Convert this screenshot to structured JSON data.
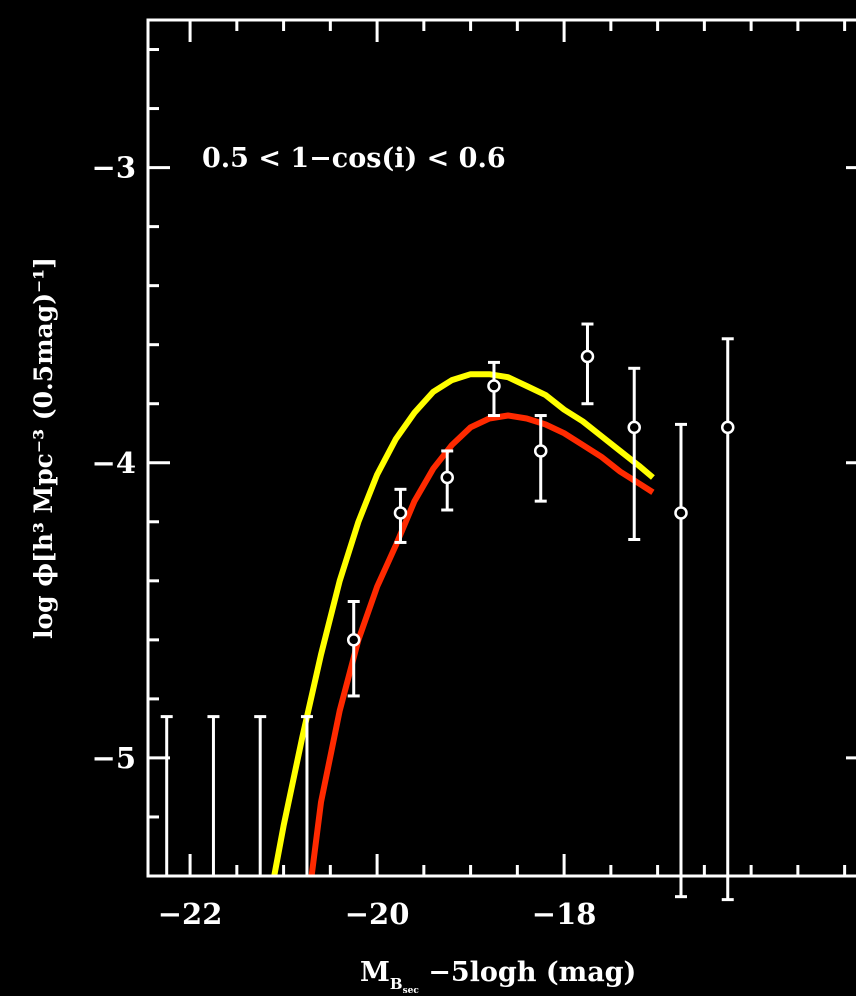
{
  "chart_data": {
    "type": "line",
    "xlabel": "M",
    "xlabel_subscript": "B",
    "xlabel_subsubscript": "sec",
    "xlabel_rest": " −5logh (mag)",
    "ylabel": "log ϕ[h³ Mpc⁻³ (0.5mag)⁻¹]",
    "annotation": "0.5 < 1−cos(i) < 0.6",
    "xlim": [
      -22.45,
      -14.75
    ],
    "ylim": [
      -5.4,
      -2.5
    ],
    "x_major_ticks": [
      -22,
      -20,
      -18
    ],
    "x_tick_labels": [
      "−22",
      "−20",
      "−18"
    ],
    "y_major_ticks": [
      -3,
      -4,
      -5
    ],
    "y_tick_labels": [
      "−3",
      "−4",
      "−5"
    ],
    "x_minor_step": 0.5,
    "y_minor_step": 0.2,
    "points": [
      {
        "x": -20.25,
        "y": -4.6,
        "err_low": 0.19,
        "err_high": 0.13
      },
      {
        "x": -19.75,
        "y": -4.17,
        "err_low": 0.1,
        "err_high": 0.08
      },
      {
        "x": -19.25,
        "y": -4.05,
        "err_low": 0.11,
        "err_high": 0.09
      },
      {
        "x": -18.75,
        "y": -3.74,
        "err_low": 0.1,
        "err_high": 0.08
      },
      {
        "x": -18.25,
        "y": -3.96,
        "err_low": 0.17,
        "err_high": 0.12
      },
      {
        "x": -17.75,
        "y": -3.64,
        "err_low": 0.16,
        "err_high": 0.11
      },
      {
        "x": -17.25,
        "y": -3.88,
        "err_low": 0.38,
        "err_high": 0.2
      },
      {
        "x": -16.75,
        "y": -4.17,
        "err_low": 1.3,
        "err_high": 0.3
      },
      {
        "x": -16.25,
        "y": -3.88,
        "err_low": 1.6,
        "err_high": 0.3
      }
    ],
    "upper_limits": [
      {
        "x": -22.25,
        "y": -4.86
      },
      {
        "x": -21.75,
        "y": -4.86
      },
      {
        "x": -21.25,
        "y": -4.86
      },
      {
        "x": -20.75,
        "y": -4.86
      }
    ],
    "series": [
      {
        "color": "#ffff00",
        "x": [
          -21.1,
          -21.0,
          -20.8,
          -20.6,
          -20.4,
          -20.2,
          -20.0,
          -19.8,
          -19.6,
          -19.4,
          -19.2,
          -19.0,
          -18.8,
          -18.6,
          -18.4,
          -18.2,
          -18.0,
          -17.8,
          -17.6,
          -17.4,
          -17.2,
          -17.05
        ],
        "y": [
          -5.4,
          -5.23,
          -4.93,
          -4.65,
          -4.4,
          -4.2,
          -4.04,
          -3.92,
          -3.83,
          -3.76,
          -3.72,
          -3.7,
          -3.7,
          -3.71,
          -3.74,
          -3.77,
          -3.82,
          -3.86,
          -3.91,
          -3.96,
          -4.01,
          -4.05
        ]
      },
      {
        "color": "#ff2a00",
        "x": [
          -20.7,
          -20.6,
          -20.4,
          -20.2,
          -20.0,
          -19.8,
          -19.6,
          -19.4,
          -19.2,
          -19.0,
          -18.8,
          -18.6,
          -18.4,
          -18.2,
          -18.0,
          -17.8,
          -17.6,
          -17.4,
          -17.2,
          -17.05
        ],
        "y": [
          -5.4,
          -5.15,
          -4.84,
          -4.6,
          -4.42,
          -4.28,
          -4.13,
          -4.02,
          -3.94,
          -3.88,
          -3.85,
          -3.84,
          -3.85,
          -3.87,
          -3.9,
          -3.94,
          -3.98,
          -4.03,
          -4.07,
          -4.1
        ]
      }
    ]
  }
}
